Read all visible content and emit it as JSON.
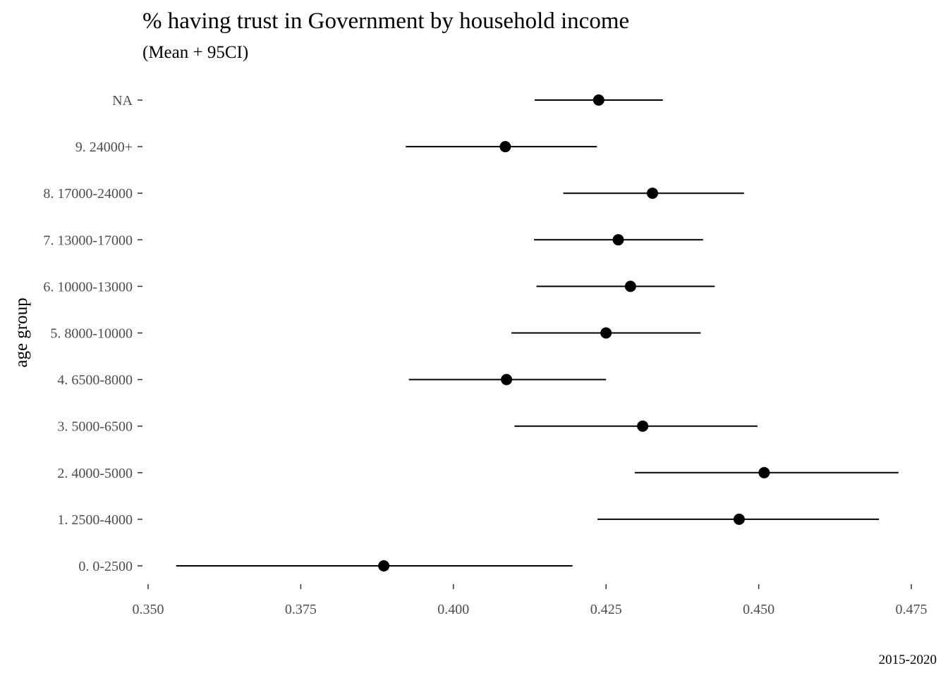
{
  "chart_data": {
    "type": "pointrange",
    "title": "% having trust in Government by household income",
    "subtitle": "(Mean + 95CI)",
    "ylabel": "age group",
    "xlabel": "",
    "caption": "2015-2020",
    "xlim": [
      0.35,
      0.475
    ],
    "xticks": [
      0.35,
      0.375,
      0.4,
      0.425,
      0.45,
      0.475
    ],
    "xtick_labels": [
      "0.350",
      "0.375",
      "0.400",
      "0.425",
      "0.450",
      "0.475"
    ],
    "grid": false,
    "legend": "none",
    "categories": [
      "0. 0-2500",
      "1. 2500-4000",
      "2. 4000-5000",
      "3. 5000-6500",
      "4. 6500-8000",
      "5. 8000-10000",
      "6. 10000-13000",
      "7. 13000-17000",
      "8. 17000-24000",
      "9. 24000+",
      "NA"
    ],
    "mean": [
      0.3886,
      0.4468,
      0.4509,
      0.431,
      0.4087,
      0.425,
      0.429,
      0.427,
      0.4326,
      0.4085,
      0.4238
    ],
    "lower": [
      0.3546,
      0.4236,
      0.4297,
      0.41,
      0.3927,
      0.4095,
      0.4136,
      0.4132,
      0.418,
      0.3922,
      0.4133
    ],
    "upper": [
      0.4195,
      0.4697,
      0.4729,
      0.4498,
      0.425,
      0.4405,
      0.4428,
      0.4409,
      0.4476,
      0.4235,
      0.4343
    ],
    "colors": {
      "point": "#000000",
      "line": "#000000",
      "tick_text": "#4d4d4d"
    }
  }
}
